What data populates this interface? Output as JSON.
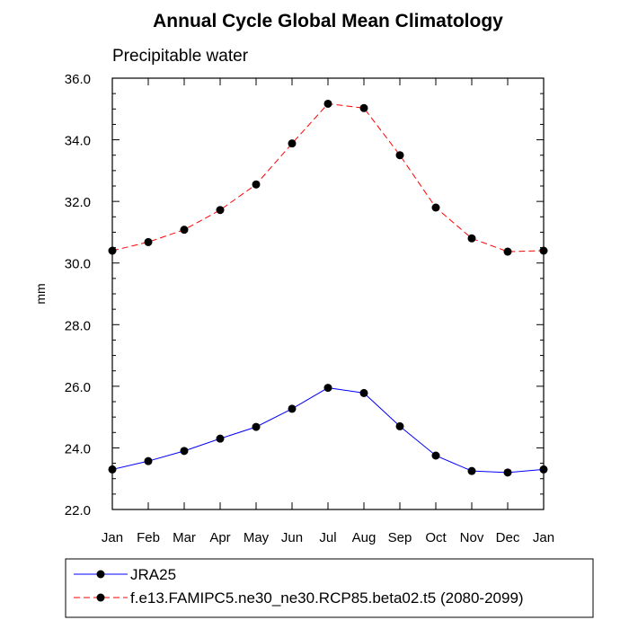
{
  "chart_data": {
    "type": "line",
    "title": "Annual Cycle Global Mean Climatology",
    "subtitle": "Precipitable water",
    "ylabel": "mm",
    "xlabel": "",
    "categories": [
      "Jan",
      "Feb",
      "Mar",
      "Apr",
      "May",
      "Jun",
      "Jul",
      "Aug",
      "Sep",
      "Oct",
      "Nov",
      "Dec",
      "Jan"
    ],
    "ylim": [
      22.0,
      36.0
    ],
    "yticks": [
      "22.0",
      "24.0",
      "26.0",
      "28.0",
      "30.0",
      "32.0",
      "34.0",
      "36.0"
    ],
    "grid": false,
    "legend_position": "bottom",
    "series": [
      {
        "name": "JRA25",
        "color": "#0000ff",
        "line_style": "solid",
        "marker": "filled-circle",
        "values": [
          23.3,
          23.57,
          23.9,
          24.3,
          24.68,
          25.27,
          25.95,
          25.78,
          24.7,
          23.75,
          23.25,
          23.2,
          23.3
        ]
      },
      {
        "name": "f.e13.FAMIPC5.ne30_ne30.RCP85.beta02.t5 (2080-2099)",
        "color": "#ff0000",
        "line_style": "dashed",
        "marker": "filled-circle",
        "values": [
          30.4,
          30.68,
          31.08,
          31.72,
          32.55,
          33.88,
          35.17,
          35.03,
          33.5,
          31.8,
          30.8,
          30.37,
          30.4
        ]
      }
    ]
  }
}
